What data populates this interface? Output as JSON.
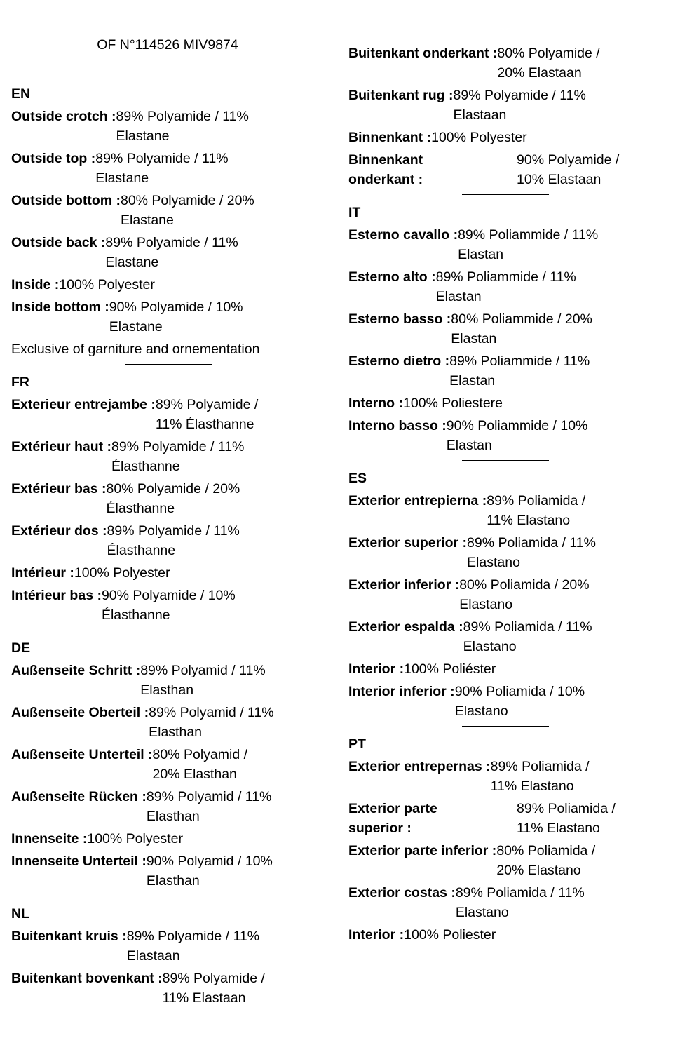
{
  "doc_title": "OF N°114526 MIV9874",
  "left_sections": [
    {
      "lang": "EN",
      "entries": [
        {
          "label": "Outside crotch :",
          "value_1": "89% Polyamide / 11%",
          "value_2": "Elastane"
        },
        {
          "label": "Outside top :",
          "value_1": "89% Polyamide / 11%",
          "value_2": "Elastane"
        },
        {
          "label": "Outside bottom :",
          "value_1": "80% Polyamide / 20%",
          "value_2": "Elastane"
        },
        {
          "label": "Outside back :",
          "value_1": "89% Polyamide / 11%",
          "value_2": "Elastane"
        },
        {
          "label": "Inside :",
          "value_1": "100% Polyester",
          "value_2": ""
        },
        {
          "label": "Inside bottom :",
          "value_1": "90% Polyamide / 10%",
          "value_2": "Elastane"
        }
      ],
      "note": "Exclusive of garniture and ornementation"
    },
    {
      "lang": "FR",
      "entries": [
        {
          "label": "Exterieur entrejambe :",
          "value_1": "89% Polyamide /",
          "value_2": "11% Élasthanne"
        },
        {
          "label": "Extérieur haut :",
          "value_1": "89% Polyamide / 11%",
          "value_2": "Élasthanne"
        },
        {
          "label": "Extérieur bas :",
          "value_1": "80% Polyamide / 20%",
          "value_2": "Élasthanne"
        },
        {
          "label": "Extérieur dos :",
          "value_1": "89% Polyamide / 11%",
          "value_2": "Élasthanne"
        },
        {
          "label": "Intérieur :",
          "value_1": "100% Polyester",
          "value_2": ""
        },
        {
          "label": "Intérieur bas :",
          "value_1": "90% Polyamide / 10%",
          "value_2": "Élasthanne"
        }
      ]
    },
    {
      "lang": "DE",
      "entries": [
        {
          "label": "Außenseite Schritt :",
          "value_1": "89% Polyamid / 11%",
          "value_2": "Elasthan"
        },
        {
          "label": "Außenseite Oberteil :",
          "value_1": "89% Polyamid / 11%",
          "value_2": "Elasthan"
        },
        {
          "label": "Außenseite Unterteil :",
          "value_1": "80% Polyamid /",
          "value_2": "20% Elasthan"
        },
        {
          "label": "Außenseite Rücken :",
          "value_1": "89% Polyamid / 11%",
          "value_2": "Elasthan"
        },
        {
          "label": "Innenseite :",
          "value_1": "100% Polyester",
          "value_2": ""
        },
        {
          "label": "Innenseite Unterteil :",
          "value_1": "90% Polyamid / 10%",
          "value_2": "Elasthan"
        }
      ]
    },
    {
      "lang": "NL",
      "entries": [
        {
          "label": "Buitenkant kruis :",
          "value_1": "89% Polyamide / 11%",
          "value_2": "Elastaan"
        },
        {
          "label": "Buitenkant bovenkant :",
          "value_1": "89% Polyamide /",
          "value_2": "11% Elastaan"
        }
      ]
    }
  ],
  "right_sections": [
    {
      "lang": "",
      "entries": [
        {
          "label": "Buitenkant onderkant :",
          "value_1": "80% Polyamide /",
          "value_2": "20% Elastaan"
        },
        {
          "label": "Buitenkant rug :",
          "value_1": "89% Polyamide / 11%",
          "value_2": "Elastaan"
        },
        {
          "label": "Binnenkant :",
          "value_1": "100% Polyester",
          "value_2": ""
        },
        {
          "label_1": "Binnenkant",
          "label_2": "onderkant :",
          "value_1": "90% Polyamide /",
          "value_2": "10% Elastaan",
          "split": true
        }
      ]
    },
    {
      "lang": "IT",
      "entries": [
        {
          "label": "Esterno cavallo :",
          "value_1": "89% Poliammide / 11%",
          "value_2": "Elastan"
        },
        {
          "label": "Esterno alto :",
          "value_1": "89% Poliammide / 11%",
          "value_2": "Elastan"
        },
        {
          "label": "Esterno basso :",
          "value_1": "80% Poliammide / 20%",
          "value_2": "Elastan"
        },
        {
          "label": "Esterno dietro :",
          "value_1": "89% Poliammide / 11%",
          "value_2": "Elastan"
        },
        {
          "label": "Interno :",
          "value_1": "100% Poliestere",
          "value_2": ""
        },
        {
          "label": "Interno basso :",
          "value_1": "90% Poliammide / 10%",
          "value_2": "Elastan"
        }
      ]
    },
    {
      "lang": "ES",
      "entries": [
        {
          "label": "Exterior entrepierna :",
          "value_1": "89% Poliamida /",
          "value_2": "11% Elastano"
        },
        {
          "label": "Exterior superior :",
          "value_1": "89% Poliamida / 11%",
          "value_2": "Elastano"
        },
        {
          "label": "Exterior inferior :",
          "value_1": "80% Poliamida / 20%",
          "value_2": "Elastano"
        },
        {
          "label": "Exterior espalda :",
          "value_1": "89% Poliamida / 11%",
          "value_2": "Elastano"
        },
        {
          "label": "Interior :",
          "value_1": "100% Poliéster",
          "value_2": ""
        },
        {
          "label": "Interior inferior :",
          "value_1": "90% Poliamida / 10%",
          "value_2": "Elastano"
        }
      ]
    },
    {
      "lang": "PT",
      "entries": [
        {
          "label": "Exterior entrepernas :",
          "value_1": "89% Poliamida /",
          "value_2": "11% Elastano"
        },
        {
          "label_1": "Exterior parte",
          "label_2": "superior :",
          "value_1": "89% Poliamida /",
          "value_2": "11% Elastano",
          "split": true
        },
        {
          "label": "Exterior parte inferior :",
          "value_1": "80% Poliamida /",
          "value_2": "20% Elastano"
        },
        {
          "label": "Exterior costas :",
          "value_1": "89% Poliamida / 11%",
          "value_2": "Elastano"
        },
        {
          "label": "Interior :",
          "value_1": "100% Poliester",
          "value_2": ""
        }
      ]
    }
  ]
}
